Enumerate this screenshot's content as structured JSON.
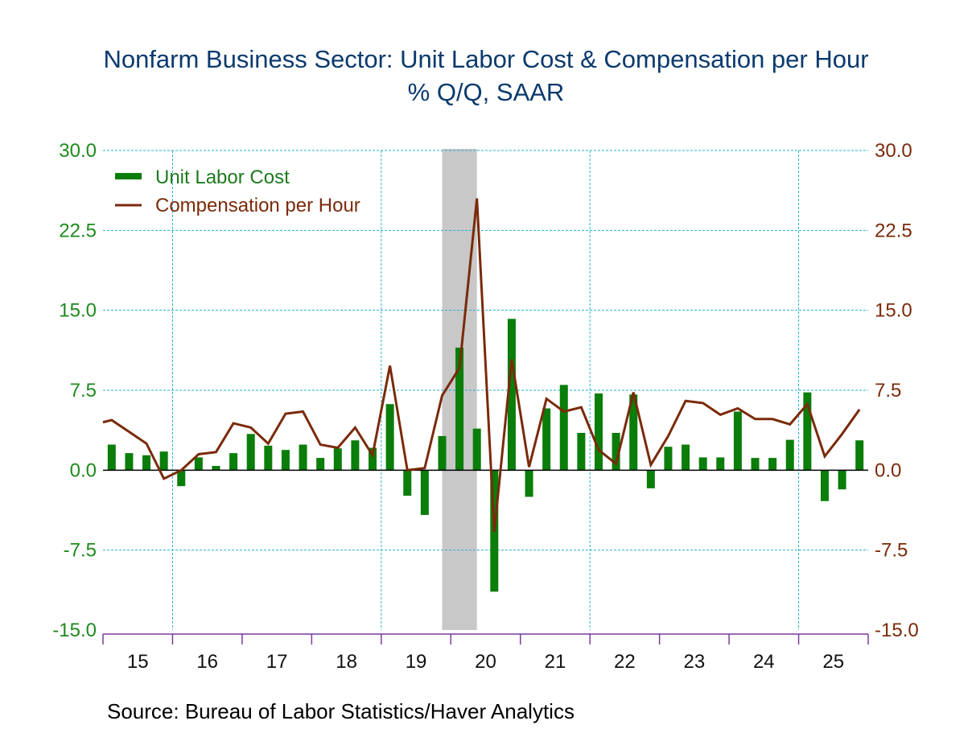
{
  "chart_data": {
    "type": "bar+line",
    "title": "Nonfarm Business Sector: Unit Labor Cost & Compensation per Hour",
    "subtitle": "% Q/Q, SAAR",
    "source": "Source:  Bureau of Labor Statistics/Haver Analytics",
    "xlabel": "",
    "ylabel": "",
    "ylim": [
      -15,
      30
    ],
    "y_ticks": [
      "30.0",
      "22.5",
      "15.0",
      "7.5",
      "0.0",
      "-7.5",
      "-15.0"
    ],
    "y_tick_values": [
      30,
      22.5,
      15,
      7.5,
      0,
      -7.5,
      -15
    ],
    "x_tick_labels": [
      "15",
      "16",
      "17",
      "18",
      "19",
      "20",
      "21",
      "22",
      "23",
      "24",
      "25"
    ],
    "vertical_gridline_years": [
      "16",
      "19",
      "22",
      "25"
    ],
    "grid": true,
    "legend_position": "top-left",
    "recession_shading": {
      "start": "2019Q4",
      "end": "2020Q2"
    },
    "categories": [
      "2015Q1",
      "2015Q2",
      "2015Q3",
      "2015Q4",
      "2016Q1",
      "2016Q2",
      "2016Q3",
      "2016Q4",
      "2017Q1",
      "2017Q2",
      "2017Q3",
      "2017Q4",
      "2018Q1",
      "2018Q2",
      "2018Q3",
      "2018Q4",
      "2019Q1",
      "2019Q2",
      "2019Q3",
      "2019Q4",
      "2020Q1",
      "2020Q2",
      "2020Q3",
      "2020Q4",
      "2021Q1",
      "2021Q2",
      "2021Q3",
      "2021Q4",
      "2022Q1",
      "2022Q2",
      "2022Q3",
      "2022Q4",
      "2023Q1",
      "2023Q2",
      "2023Q3",
      "2023Q4",
      "2024Q1",
      "2024Q2",
      "2024Q3",
      "2024Q4",
      "2025Q1",
      "2025Q2",
      "2025Q3",
      "2025Q4"
    ],
    "series": [
      {
        "name": "Unit Labor Cost",
        "type": "bar",
        "color": "#0a7d0a",
        "values": [
          2.4,
          1.6,
          1.4,
          1.75,
          -1.5,
          1.2,
          0.4,
          1.6,
          3.4,
          2.3,
          1.9,
          2.4,
          1.15,
          2.05,
          2.8,
          2.1,
          6.2,
          -2.4,
          -4.2,
          3.2,
          11.5,
          3.9,
          -11.4,
          14.2,
          -2.5,
          5.8,
          8.0,
          3.5,
          7.2,
          3.5,
          7.1,
          -1.7,
          2.2,
          2.4,
          1.2,
          1.2,
          5.5,
          1.15,
          1.15,
          2.85,
          7.3,
          -2.9,
          -1.8,
          2.8
        ]
      },
      {
        "name": "Compensation per Hour",
        "type": "line",
        "color": "#7a2a0a",
        "start_value": 4.5,
        "values": [
          4.7,
          3.6,
          2.5,
          -0.8,
          0.0,
          1.5,
          1.7,
          4.4,
          4.0,
          2.5,
          5.3,
          5.5,
          2.4,
          2.1,
          4.0,
          1.4,
          9.8,
          0.0,
          0.2,
          7.0,
          9.6,
          25.5,
          -5.8,
          10.4,
          0.3,
          6.7,
          5.5,
          5.9,
          1.9,
          0.6,
          7.3,
          0.5,
          3.2,
          6.5,
          6.3,
          5.2,
          5.8,
          4.8,
          4.8,
          4.3,
          6.2,
          1.3,
          3.4,
          5.7
        ]
      }
    ]
  },
  "colors": {
    "title": "#0a3a6e",
    "left_axis": "#1e8a1e",
    "right_axis": "#7a2a0a",
    "grid": "#2ab0c8",
    "x_axis": "#7a3aa0",
    "recession": "#c8c8c8"
  }
}
